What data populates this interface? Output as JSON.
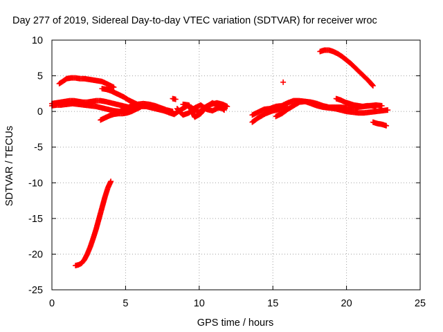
{
  "chart_data": {
    "type": "scatter",
    "title": "Day 277 of 2019, Sidereal Day-to-day VTEC variation (SDTVAR) for receiver wroc",
    "xlabel": "GPS time / hours",
    "ylabel": "SDTVAR / TECUs",
    "xlim": [
      0,
      25
    ],
    "ylim": [
      -25,
      10
    ],
    "xticks": [
      0,
      5,
      10,
      15,
      20,
      25
    ],
    "yticks": [
      -25,
      -20,
      -15,
      -10,
      -5,
      0,
      5,
      10
    ],
    "xtick_labels": [
      "0",
      "5",
      "10",
      "15",
      "20",
      "25"
    ],
    "ytick_labels": [
      "-25",
      "-20",
      "-15",
      "-10",
      "-5",
      "0",
      "5",
      "10"
    ],
    "grid": true,
    "legend": "none",
    "marker": "+",
    "colors": {
      "series": "#ff0000",
      "axis": "#000000",
      "grid": "#a0a0a0",
      "background": "#ffffff"
    },
    "series": [
      {
        "name": "s1",
        "x": [
          0.0,
          0.3,
          0.6,
          0.9,
          1.2,
          1.5,
          1.8,
          2.1,
          2.4,
          2.7,
          3.0,
          3.3,
          3.6,
          4.0,
          4.4,
          4.8,
          5.2,
          5.6,
          6.0,
          6.4,
          6.8,
          7.2,
          7.6,
          8.0,
          8.3
        ],
        "y": [
          1.1,
          1.2,
          1.3,
          1.4,
          1.5,
          1.5,
          1.4,
          1.3,
          1.3,
          1.4,
          1.5,
          1.5,
          1.4,
          1.2,
          1.0,
          0.8,
          0.6,
          0.6,
          0.7,
          0.7,
          0.5,
          0.3,
          0.1,
          -0.2,
          -0.4
        ]
      },
      {
        "name": "s2",
        "x": [
          0.0,
          0.3,
          0.6,
          1.0,
          1.4,
          1.8,
          2.2,
          2.6,
          3.0,
          3.4,
          3.8,
          4.2,
          4.6,
          5.0,
          5.4,
          5.8,
          6.2,
          6.6,
          7.0,
          7.4,
          7.8,
          8.2
        ],
        "y": [
          0.8,
          0.9,
          0.9,
          1.0,
          1.1,
          1.0,
          0.9,
          0.8,
          0.7,
          0.5,
          0.3,
          0.1,
          0.0,
          0.4,
          0.8,
          1.0,
          1.1,
          1.0,
          0.8,
          0.5,
          0.2,
          0.0
        ]
      },
      {
        "name": "s3",
        "x": [
          0.5,
          0.8,
          1.0,
          1.3,
          1.6,
          1.9,
          2.2,
          2.5,
          2.8,
          3.1,
          3.4,
          3.7,
          4.0,
          4.2
        ],
        "y": [
          3.9,
          4.3,
          4.6,
          4.7,
          4.7,
          4.6,
          4.6,
          4.5,
          4.4,
          4.3,
          4.2,
          3.9,
          3.6,
          3.4
        ]
      },
      {
        "name": "s4",
        "x": [
          3.4,
          3.7,
          4.0,
          4.3,
          4.6,
          4.9,
          5.2,
          5.5,
          5.8
        ],
        "y": [
          3.2,
          3.1,
          2.9,
          2.6,
          2.3,
          2.0,
          1.6,
          1.3,
          1.0
        ]
      },
      {
        "name": "s5",
        "x": [
          3.3,
          3.6,
          3.9,
          4.2,
          4.5,
          4.8,
          5.1,
          5.4,
          5.7,
          6.0
        ],
        "y": [
          -1.2,
          -0.9,
          -0.6,
          -0.4,
          -0.3,
          -0.3,
          -0.2,
          0.0,
          0.3,
          0.6
        ]
      },
      {
        "name": "s6",
        "x": [
          1.6,
          1.8,
          2.0,
          2.2,
          2.4,
          2.6,
          2.8,
          3.0,
          3.2,
          3.4,
          3.6,
          3.8,
          4.0
        ],
        "y": [
          -21.6,
          -21.5,
          -21.3,
          -20.8,
          -20.0,
          -19.0,
          -17.8,
          -16.5,
          -15.0,
          -13.5,
          -12.0,
          -10.7,
          -9.8
        ]
      },
      {
        "name": "s7",
        "x": [
          8.3,
          8.8,
          9.2,
          9.6,
          10.0,
          10.4,
          10.8,
          11.2,
          11.6,
          11.9
        ],
        "y": [
          -0.4,
          0.3,
          0.8,
          0.4,
          -0.1,
          0.6,
          1.0,
          1.2,
          1.0,
          0.7
        ]
      },
      {
        "name": "s8",
        "x": [
          8.5,
          8.9,
          9.3,
          9.7,
          10.1,
          10.5,
          10.9,
          11.3,
          11.7
        ],
        "y": [
          0.4,
          -0.5,
          -0.2,
          0.5,
          0.9,
          0.3,
          0.1,
          0.5,
          0.4
        ]
      },
      {
        "name": "s9",
        "x": [
          8.9,
          9.3,
          9.7,
          10.1,
          10.5,
          10.9,
          11.3,
          11.7
        ],
        "y": [
          1.0,
          0.9,
          -0.8,
          -0.3,
          0.7,
          1.2,
          0.8,
          0.2
        ]
      },
      {
        "name": "s10",
        "x": [
          8.2,
          8.4
        ],
        "y": [
          1.8,
          1.7
        ]
      },
      {
        "name": "s11",
        "x": [
          15.7
        ],
        "y": [
          4.1
        ]
      },
      {
        "name": "s12",
        "x": [
          13.6,
          14.0,
          14.4,
          14.8,
          15.2,
          15.6,
          16.0,
          16.4,
          16.8,
          17.2,
          17.6,
          18.0,
          18.4,
          18.8,
          19.2,
          19.6,
          20.0,
          20.4,
          20.8,
          21.2,
          21.6,
          22.0,
          22.4,
          22.8
        ],
        "y": [
          -0.5,
          -0.1,
          0.3,
          0.4,
          0.7,
          0.8,
          1.2,
          1.5,
          1.5,
          1.4,
          1.1,
          0.8,
          0.6,
          0.5,
          0.4,
          0.2,
          0.0,
          -0.1,
          -0.2,
          -0.2,
          -0.1,
          0.0,
          0.1,
          0.2
        ]
      },
      {
        "name": "s13",
        "x": [
          13.6,
          14.0,
          14.5,
          15.0,
          15.5,
          16.0
        ],
        "y": [
          -1.5,
          -0.9,
          -0.3,
          0.1,
          0.3,
          0.6
        ]
      },
      {
        "name": "s14",
        "x": [
          15.2,
          15.6,
          16.0,
          16.4,
          16.8,
          17.2,
          17.6,
          18.0,
          18.4,
          18.8,
          19.2,
          19.6,
          20.0,
          20.4,
          20.8,
          21.2,
          21.6,
          22.0,
          22.4
        ],
        "y": [
          -0.7,
          -0.3,
          0.3,
          0.8,
          1.3,
          1.4,
          1.3,
          1.1,
          0.8,
          0.6,
          0.6,
          0.6,
          0.5,
          0.5,
          0.6,
          0.7,
          0.8,
          0.9,
          0.8
        ]
      },
      {
        "name": "s15",
        "x": [
          18.2,
          18.5,
          18.8,
          19.1,
          19.4,
          19.7,
          20.0,
          20.3,
          20.6,
          20.9,
          21.2,
          21.5,
          21.8
        ],
        "y": [
          8.4,
          8.6,
          8.6,
          8.4,
          8.1,
          7.7,
          7.2,
          6.7,
          6.1,
          5.5,
          4.9,
          4.3,
          3.6
        ]
      },
      {
        "name": "s16",
        "x": [
          19.3,
          19.6,
          19.9,
          20.2,
          20.5,
          20.8,
          21.1,
          21.4,
          21.7,
          22.0
        ],
        "y": [
          1.8,
          1.6,
          1.3,
          1.1,
          0.9,
          0.8,
          0.7,
          0.8,
          0.8,
          0.7
        ]
      },
      {
        "name": "s17",
        "x": [
          21.8,
          22.1,
          22.4,
          22.7
        ],
        "y": [
          -1.5,
          -1.7,
          -1.8,
          -2.0
        ]
      }
    ]
  }
}
